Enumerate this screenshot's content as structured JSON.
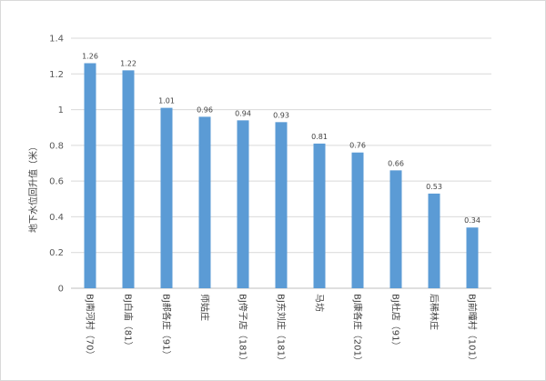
{
  "chart_data": {
    "type": "bar",
    "title": "",
    "xlabel": "",
    "ylabel": "地下水位回升值（米）",
    "ylim": [
      0,
      1.4
    ],
    "ytick_step": 0.2,
    "yticks": [
      "0",
      "0.2",
      "0.4",
      "0.6",
      "0.8",
      "1",
      "1.2",
      "1.4"
    ],
    "grid": true,
    "legend": "none",
    "bar_color": "#5b9bd5",
    "categories": [
      "BJ南河村（70）",
      "BJ白庙（81）",
      "BJ郝各庄（91）",
      "师姑庄",
      "BJ侉子店（181）",
      "BJ东刘庄（181）",
      "马坊",
      "BJ康各庄（201）",
      "BJ杜店（91）",
      "后稀林庄",
      "BJ前疃村（101）"
    ],
    "values": [
      1.26,
      1.22,
      1.01,
      0.96,
      0.94,
      0.93,
      0.81,
      0.76,
      0.66,
      0.53,
      0.34
    ],
    "data_labels": [
      "1.26",
      "1.22",
      "1.01",
      "0.96",
      "0.94",
      "0.93",
      "0.81",
      "0.76",
      "0.66",
      "0.53",
      "0.34"
    ]
  }
}
